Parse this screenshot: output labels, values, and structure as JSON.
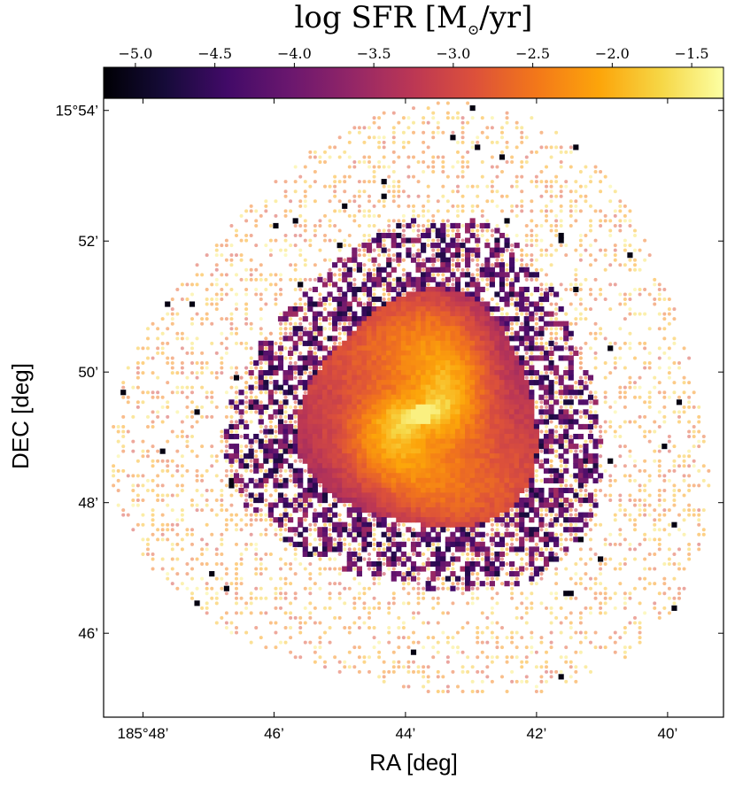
{
  "chart_data": {
    "type": "heatmap",
    "title_main": "log SFR",
    "title_unit": "[M",
    "title_unit_sub": "⊙",
    "title_unit_tail": "/yr]",
    "colorbar": {
      "colormap": "inferno",
      "vmin": -5.2,
      "vmax": -1.3,
      "ticks": [
        -5.0,
        -4.5,
        -4.0,
        -3.5,
        -3.0,
        -2.5,
        -2.0,
        -1.5
      ],
      "tick_labels": [
        "−5.0",
        "−4.5",
        "−4.0",
        "−3.5",
        "−3.0",
        "−2.5",
        "−2.0",
        "−1.5"
      ]
    },
    "xlabel": "RA [deg]",
    "ylabel": "DEC [deg]",
    "x_ticks": [
      {
        "value": 185.8,
        "label": "185°48’"
      },
      {
        "value": 185.7667,
        "label": "46’"
      },
      {
        "value": 185.7333,
        "label": "44’"
      },
      {
        "value": 185.7,
        "label": "42’"
      },
      {
        "value": 185.6667,
        "label": "40’"
      }
    ],
    "y_ticks": [
      {
        "value": 15.9,
        "label": "15°54’"
      },
      {
        "value": 15.8667,
        "label": "52’"
      },
      {
        "value": 15.8333,
        "label": "50’"
      },
      {
        "value": 15.8,
        "label": "48’"
      },
      {
        "value": 15.7667,
        "label": "46’"
      }
    ],
    "xlim": [
      185.81,
      185.6525
    ],
    "ylim": [
      15.7453,
      15.9031
    ],
    "center": {
      "ra": 185.7289,
      "dec": 15.8224
    },
    "peak_log_sfr": -1.4,
    "pixel_size_deg": 0.00125,
    "grid": false
  },
  "colors": {
    "low": "#000004",
    "mid": "#b73779",
    "high": "#fcffa4",
    "frame": "#000000"
  }
}
